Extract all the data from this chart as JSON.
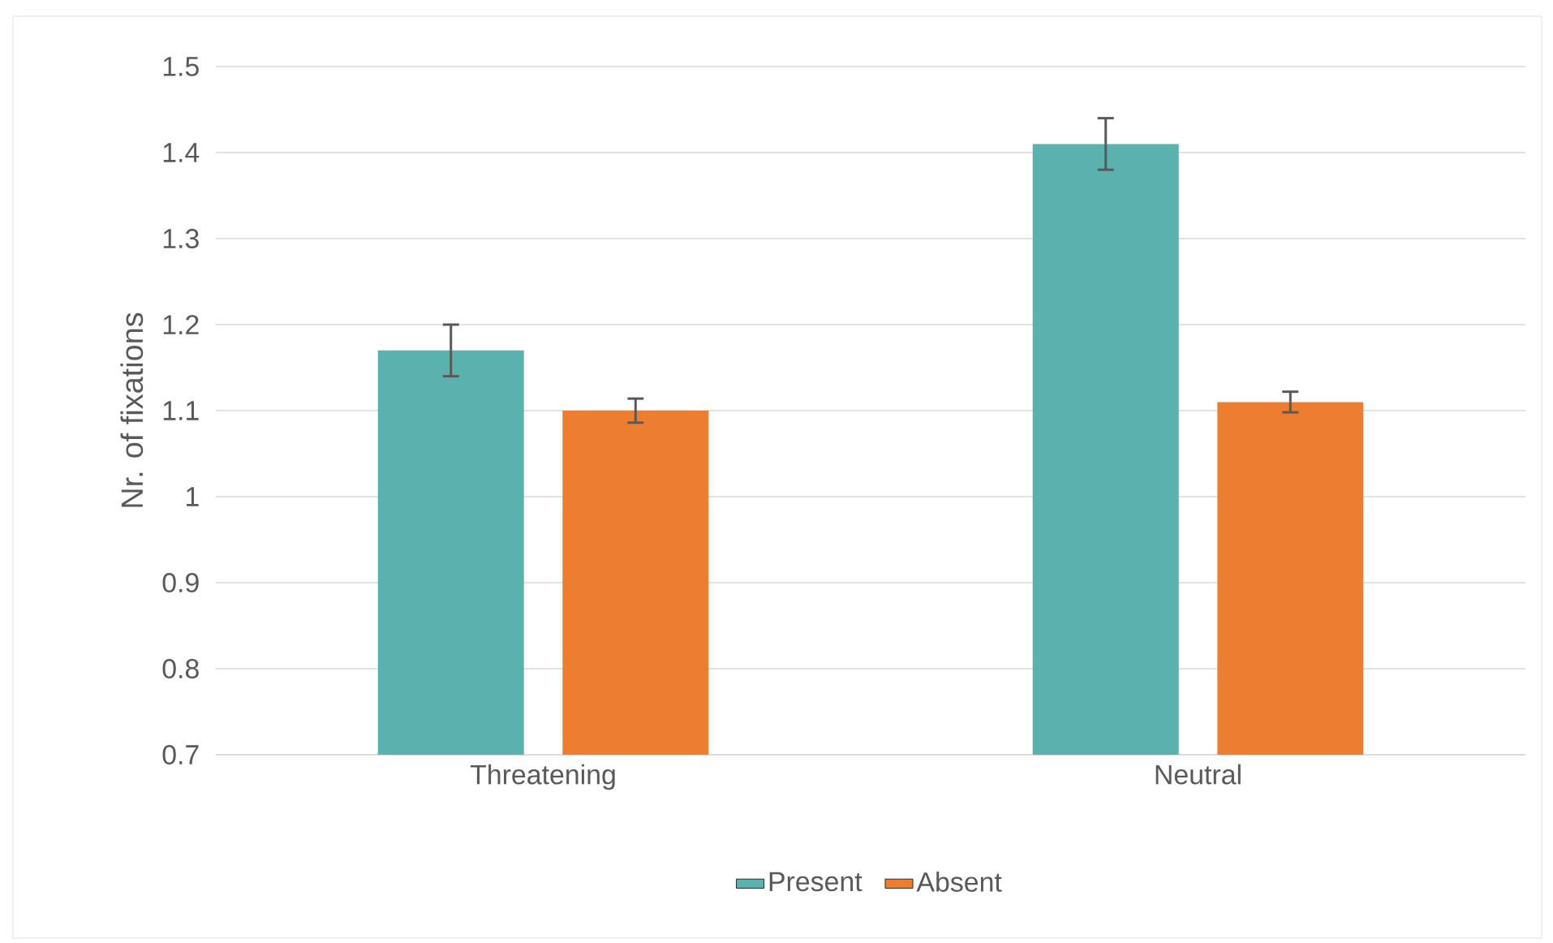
{
  "chart_data": {
    "type": "bar",
    "ylabel": "Nr. of fixations",
    "categories": [
      "Threatening",
      "Neutral"
    ],
    "series": [
      {
        "name": "Present",
        "color": "#5ab1ae",
        "values": [
          1.17,
          1.41
        ],
        "errors": [
          0.03,
          0.03
        ]
      },
      {
        "name": "Absent",
        "color": "#ed7d31",
        "values": [
          1.1,
          1.11
        ],
        "errors": [
          0.014,
          0.012
        ]
      }
    ],
    "ylim": [
      0.7,
      1.5
    ],
    "yticks": [
      0.7,
      0.8,
      0.9,
      1,
      1.1,
      1.2,
      1.3,
      1.4,
      1.5
    ],
    "grid": "y",
    "legend": "bottom"
  }
}
